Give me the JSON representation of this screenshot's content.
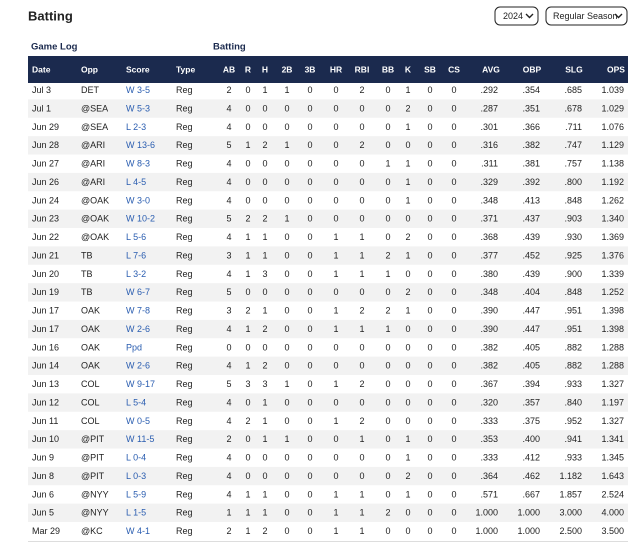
{
  "header": {
    "title": "Batting",
    "season": "2024",
    "game_type": "Regular Season"
  },
  "table": {
    "groups": [
      "Game Log",
      "Batting"
    ],
    "columns": [
      "Date",
      "Opp",
      "Score",
      "Type",
      "AB",
      "R",
      "H",
      "2B",
      "3B",
      "HR",
      "RBI",
      "BB",
      "K",
      "SB",
      "CS",
      "AVG",
      "OBP",
      "SLG",
      "OPS"
    ],
    "rows": [
      [
        "Jul 3",
        "DET",
        "W 3-5",
        "Reg",
        "2",
        "0",
        "1",
        "1",
        "0",
        "0",
        "2",
        "0",
        "1",
        "0",
        "0",
        ".292",
        ".354",
        ".685",
        "1.039"
      ],
      [
        "Jul 1",
        "@SEA",
        "W 5-3",
        "Reg",
        "4",
        "0",
        "0",
        "0",
        "0",
        "0",
        "0",
        "0",
        "2",
        "0",
        "0",
        ".287",
        ".351",
        ".678",
        "1.029"
      ],
      [
        "Jun 29",
        "@SEA",
        "L 2-3",
        "Reg",
        "4",
        "0",
        "0",
        "0",
        "0",
        "0",
        "0",
        "0",
        "1",
        "0",
        "0",
        ".301",
        ".366",
        ".711",
        "1.076"
      ],
      [
        "Jun 28",
        "@ARI",
        "W 13-6",
        "Reg",
        "5",
        "1",
        "2",
        "1",
        "0",
        "0",
        "2",
        "0",
        "0",
        "0",
        "0",
        ".316",
        ".382",
        ".747",
        "1.129"
      ],
      [
        "Jun 27",
        "@ARI",
        "W 8-3",
        "Reg",
        "4",
        "0",
        "0",
        "0",
        "0",
        "0",
        "0",
        "1",
        "1",
        "0",
        "0",
        ".311",
        ".381",
        ".757",
        "1.138"
      ],
      [
        "Jun 26",
        "@ARI",
        "L 4-5",
        "Reg",
        "4",
        "0",
        "0",
        "0",
        "0",
        "0",
        "0",
        "0",
        "1",
        "0",
        "0",
        ".329",
        ".392",
        ".800",
        "1.192"
      ],
      [
        "Jun 24",
        "@OAK",
        "W 3-0",
        "Reg",
        "4",
        "0",
        "0",
        "0",
        "0",
        "0",
        "0",
        "0",
        "1",
        "0",
        "0",
        ".348",
        ".413",
        ".848",
        "1.262"
      ],
      [
        "Jun 23",
        "@OAK",
        "W 10-2",
        "Reg",
        "5",
        "2",
        "2",
        "1",
        "0",
        "0",
        "0",
        "0",
        "0",
        "0",
        "0",
        ".371",
        ".437",
        ".903",
        "1.340"
      ],
      [
        "Jun 22",
        "@OAK",
        "L 5-6",
        "Reg",
        "4",
        "1",
        "1",
        "0",
        "0",
        "1",
        "1",
        "0",
        "2",
        "0",
        "0",
        ".368",
        ".439",
        ".930",
        "1.369"
      ],
      [
        "Jun 21",
        "TB",
        "L 7-6",
        "Reg",
        "3",
        "1",
        "1",
        "0",
        "0",
        "1",
        "1",
        "2",
        "1",
        "0",
        "0",
        ".377",
        ".452",
        ".925",
        "1.376"
      ],
      [
        "Jun 20",
        "TB",
        "L 3-2",
        "Reg",
        "4",
        "1",
        "3",
        "0",
        "0",
        "1",
        "1",
        "1",
        "0",
        "0",
        "0",
        ".380",
        ".439",
        ".900",
        "1.339"
      ],
      [
        "Jun 19",
        "TB",
        "W 6-7",
        "Reg",
        "5",
        "0",
        "0",
        "0",
        "0",
        "0",
        "0",
        "0",
        "2",
        "0",
        "0",
        ".348",
        ".404",
        ".848",
        "1.252"
      ],
      [
        "Jun 17",
        "OAK",
        "W 7-8",
        "Reg",
        "3",
        "2",
        "1",
        "0",
        "0",
        "1",
        "2",
        "2",
        "1",
        "0",
        "0",
        ".390",
        ".447",
        ".951",
        "1.398"
      ],
      [
        "Jun 17",
        "OAK",
        "W 2-6",
        "Reg",
        "4",
        "1",
        "2",
        "0",
        "0",
        "1",
        "1",
        "1",
        "0",
        "0",
        "0",
        ".390",
        ".447",
        ".951",
        "1.398"
      ],
      [
        "Jun 16",
        "OAK",
        "Ppd",
        "Reg",
        "0",
        "0",
        "0",
        "0",
        "0",
        "0",
        "0",
        "0",
        "0",
        "0",
        "0",
        ".382",
        ".405",
        ".882",
        "1.288"
      ],
      [
        "Jun 14",
        "OAK",
        "W 2-6",
        "Reg",
        "4",
        "1",
        "2",
        "0",
        "0",
        "0",
        "0",
        "0",
        "0",
        "0",
        "0",
        ".382",
        ".405",
        ".882",
        "1.288"
      ],
      [
        "Jun 13",
        "COL",
        "W 9-17",
        "Reg",
        "5",
        "3",
        "3",
        "1",
        "0",
        "1",
        "2",
        "0",
        "0",
        "0",
        "0",
        ".367",
        ".394",
        ".933",
        "1.327"
      ],
      [
        "Jun 12",
        "COL",
        "L 5-4",
        "Reg",
        "4",
        "0",
        "1",
        "0",
        "0",
        "0",
        "0",
        "0",
        "0",
        "0",
        "0",
        ".320",
        ".357",
        ".840",
        "1.197"
      ],
      [
        "Jun 11",
        "COL",
        "W 0-5",
        "Reg",
        "4",
        "2",
        "1",
        "0",
        "0",
        "1",
        "2",
        "0",
        "0",
        "0",
        "0",
        ".333",
        ".375",
        ".952",
        "1.327"
      ],
      [
        "Jun 10",
        "@PIT",
        "W 11-5",
        "Reg",
        "2",
        "0",
        "1",
        "1",
        "0",
        "0",
        "1",
        "0",
        "1",
        "0",
        "0",
        ".353",
        ".400",
        ".941",
        "1.341"
      ],
      [
        "Jun 9",
        "@PIT",
        "L 0-4",
        "Reg",
        "4",
        "0",
        "0",
        "0",
        "0",
        "0",
        "0",
        "0",
        "1",
        "0",
        "0",
        ".333",
        ".412",
        ".933",
        "1.345"
      ],
      [
        "Jun 8",
        "@PIT",
        "L 0-3",
        "Reg",
        "4",
        "0",
        "0",
        "0",
        "0",
        "0",
        "0",
        "0",
        "2",
        "0",
        "0",
        ".364",
        ".462",
        "1.182",
        "1.643"
      ],
      [
        "Jun 6",
        "@NYY",
        "L 5-9",
        "Reg",
        "4",
        "1",
        "1",
        "0",
        "0",
        "1",
        "1",
        "0",
        "1",
        "0",
        "0",
        ".571",
        ".667",
        "1.857",
        "2.524"
      ],
      [
        "Jun 5",
        "@NYY",
        "L 1-5",
        "Reg",
        "1",
        "1",
        "1",
        "0",
        "0",
        "1",
        "1",
        "2",
        "0",
        "0",
        "0",
        "1.000",
        "1.000",
        "3.000",
        "4.000"
      ],
      [
        "Mar 29",
        "@KC",
        "W 4-1",
        "Reg",
        "2",
        "1",
        "2",
        "0",
        "0",
        "1",
        "1",
        "0",
        "0",
        "0",
        "0",
        "1.000",
        "1.000",
        "2.500",
        "3.500"
      ]
    ]
  }
}
